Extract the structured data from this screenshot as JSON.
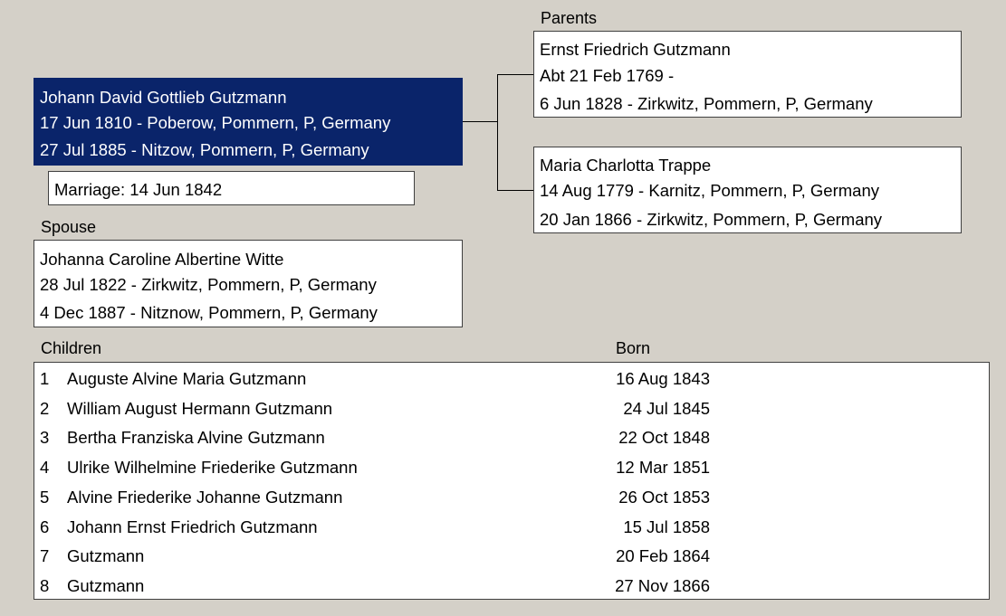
{
  "labels": {
    "parents": "Parents",
    "spouse": "Spouse",
    "children": "Children",
    "born": "Born"
  },
  "person": {
    "name": "Johann David Gottlieb Gutzmann",
    "birth": "17 Jun 1810 - Poberow, Pommern, P, Germany",
    "death": "27 Jul 1885 - Nitzow, Pommern, P, Germany"
  },
  "marriage": "Marriage: 14 Jun 1842",
  "father": {
    "name": "Ernst Friedrich Gutzmann",
    "birth": "Abt 21 Feb 1769 -",
    "death": "6 Jun 1828 - Zirkwitz, Pommern, P, Germany"
  },
  "mother": {
    "name": "Maria Charlotta Trappe",
    "birth": "14 Aug 1779 - Karnitz, Pommern, P, Germany",
    "death": "20 Jan 1866 - Zirkwitz, Pommern, P, Germany"
  },
  "spouse": {
    "name": "Johanna Caroline Albertine Witte",
    "birth": "28 Jul 1822 - Zirkwitz, Pommern, P, Germany",
    "death": "4 Dec 1887 - Nitznow, Pommern, P, Germany"
  },
  "children": [
    {
      "num": "1",
      "name": "Auguste Alvine Maria Gutzmann",
      "born": "16 Aug 1843"
    },
    {
      "num": "2",
      "name": "William August Hermann Gutzmann",
      "born": "24 Jul 1845"
    },
    {
      "num": "3",
      "name": "Bertha Franziska Alvine Gutzmann",
      "born": "22 Oct 1848"
    },
    {
      "num": "4",
      "name": "Ulrike Wilhelmine Friederike Gutzmann",
      "born": "12 Mar 1851"
    },
    {
      "num": "5",
      "name": "Alvine Friederike Johanne Gutzmann",
      "born": "26 Oct 1853"
    },
    {
      "num": "6",
      "name": "Johann Ernst Friedrich Gutzmann",
      "born": "15 Jul 1858"
    },
    {
      "num": "7",
      "name": "Gutzmann",
      "born": "20 Feb 1864"
    },
    {
      "num": "8",
      "name": "Gutzmann",
      "born": "27 Nov 1866"
    }
  ],
  "colors": {
    "background": "#d4d0c8",
    "selected": "#0a246a"
  }
}
